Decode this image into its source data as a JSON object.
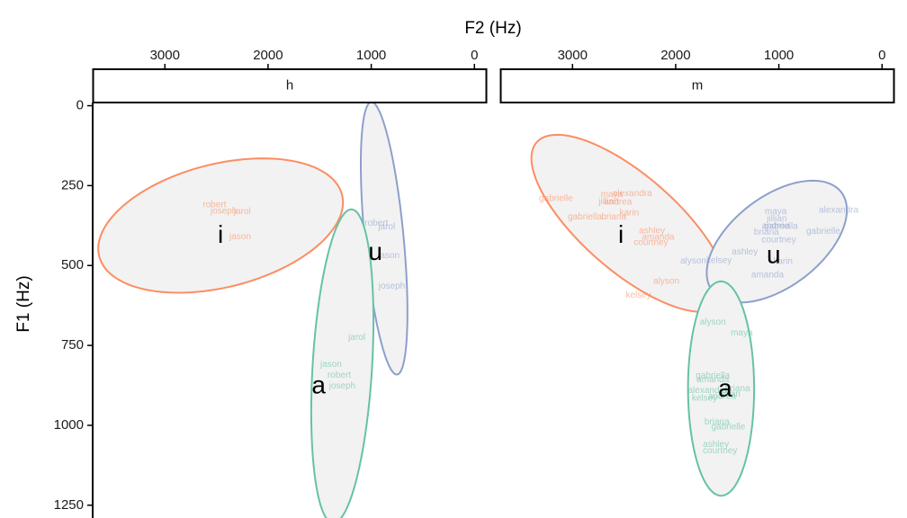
{
  "chart_data": {
    "type": "scatter",
    "xlabel": "F2 (Hz)",
    "ylabel": "F1 (Hz)",
    "x_axis_position": "top",
    "x_reversed": true,
    "y_reversed": true,
    "xlim": [
      3700,
      -120
    ],
    "ylim": [
      -10,
      1290
    ],
    "x_ticks": [
      3000,
      2000,
      1000,
      0
    ],
    "y_ticks": [
      0,
      250,
      500,
      750,
      1000,
      1250
    ],
    "grid": false,
    "colors": {
      "a": "#66c2a5",
      "i": "#fc8d62",
      "u": "#8da0cb"
    },
    "ellipse_fill": "#f2f2f2",
    "panels": [
      {
        "strip": "h",
        "vowels": [
          {
            "vowel": "i",
            "centroid": [
              2460,
              408
            ],
            "ellipse": {
              "cx": 2460,
              "cy": 375,
              "points": [
                [
                  2960,
                  256
                ],
                [
                  2010,
                  530
                ],
                [
                  2940,
                  189
                ],
                [
                  1980,
                  515
                ],
                [
                  2050,
                  160
                ],
                [
                  2370,
                  510
                ]
              ]
            }
          },
          {
            "vowel": "u",
            "centroid": [
              960,
              462
            ],
            "ellipse": {
              "cx": 875,
              "cy": 415,
              "points": [
                [
                  860,
                  55
                ],
                [
                  760,
                  825
                ],
                [
                  1000,
                  465
                ],
                [
                  660,
                  450
                ]
              ]
            }
          },
          {
            "vowel": "a",
            "centroid": [
              1510,
              880
            ],
            "ellipse": {
              "cx": 1280,
              "cy": 815,
              "points": [
                [
                  1000,
                  545
                ],
                [
                  1580,
                  1075
                ],
                [
                  1560,
                  755
                ],
                [
                  1000,
                  830
                ]
              ]
            }
          }
        ],
        "points": [
          {
            "vowel": "i",
            "speaker": "robert",
            "f2": 2520,
            "f1": 310
          },
          {
            "vowel": "i",
            "speaker": "joseph",
            "f2": 2430,
            "f1": 330
          },
          {
            "vowel": "i",
            "speaker": "jarol",
            "f2": 2250,
            "f1": 332
          },
          {
            "vowel": "i",
            "speaker": "jason",
            "f2": 2270,
            "f1": 410
          },
          {
            "vowel": "u",
            "speaker": "robert",
            "f2": 950,
            "f1": 368
          },
          {
            "vowel": "u",
            "speaker": "jarol",
            "f2": 850,
            "f1": 380
          },
          {
            "vowel": "u",
            "speaker": "jason",
            "f2": 830,
            "f1": 470
          },
          {
            "vowel": "u",
            "speaker": "joseph",
            "f2": 800,
            "f1": 565
          },
          {
            "vowel": "a",
            "speaker": "jarol",
            "f2": 1140,
            "f1": 725
          },
          {
            "vowel": "a",
            "speaker": "jason",
            "f2": 1390,
            "f1": 810
          },
          {
            "vowel": "a",
            "speaker": "robert",
            "f2": 1310,
            "f1": 843
          },
          {
            "vowel": "a",
            "speaker": "joseph",
            "f2": 1280,
            "f1": 877
          }
        ]
      },
      {
        "strip": "m",
        "vowels": [
          {
            "vowel": "i",
            "centroid": [
              2530,
              408
            ],
            "ellipse": {
              "cx": 2450,
              "cy": 368,
              "points": [
                [
                  3280,
                  105
                ],
                [
                  1610,
                  640
                ],
                [
                  3330,
                  260
                ],
                [
                  1590,
                  480
                ],
                [
                  2100,
                  330
                ],
                [
                  2950,
                  440
                ]
              ]
            }
          },
          {
            "vowel": "u",
            "centroid": [
              1050,
              472
            ],
            "ellipse": {
              "cx": 1020,
              "cy": 425,
              "points": [
                [
                  340,
                  305
                ],
                [
                  1690,
                  540
                ],
                [
                  700,
                  230
                ],
                [
                  1400,
                  610
                ],
                [
                  1110,
                  280
                ],
                [
                  920,
                  575
                ]
              ]
            }
          },
          {
            "vowel": "a",
            "centroid": [
              1520,
              890
            ],
            "ellipse": {
              "cx": 1560,
              "cy": 885,
              "points": [
                [
                  1520,
                  555
                ],
                [
                  1600,
                  1220
                ],
                [
                  1240,
                  870
                ],
                [
                  1880,
                  870
                ]
              ]
            }
          }
        ],
        "points": [
          {
            "vowel": "i",
            "speaker": "gabrielle",
            "f2": 3160,
            "f1": 290
          },
          {
            "vowel": "i",
            "speaker": "alexandra",
            "f2": 2420,
            "f1": 275
          },
          {
            "vowel": "i",
            "speaker": "maya",
            "f2": 2620,
            "f1": 278
          },
          {
            "vowel": "i",
            "speaker": "jillian",
            "f2": 2650,
            "f1": 300
          },
          {
            "vowel": "i",
            "speaker": "andrea",
            "f2": 2560,
            "f1": 302
          },
          {
            "vowel": "i",
            "speaker": "karin",
            "f2": 2450,
            "f1": 336
          },
          {
            "vowel": "i",
            "speaker": "gabriella",
            "f2": 2880,
            "f1": 348
          },
          {
            "vowel": "i",
            "speaker": "briana",
            "f2": 2600,
            "f1": 348
          },
          {
            "vowel": "i",
            "speaker": "ashley",
            "f2": 2230,
            "f1": 392
          },
          {
            "vowel": "i",
            "speaker": "amanda",
            "f2": 2170,
            "f1": 412
          },
          {
            "vowel": "i",
            "speaker": "courtney",
            "f2": 2240,
            "f1": 428
          },
          {
            "vowel": "i",
            "speaker": "alyson",
            "f2": 2090,
            "f1": 550
          },
          {
            "vowel": "i",
            "speaker": "kelsey",
            "f2": 2360,
            "f1": 593
          },
          {
            "vowel": "u",
            "speaker": "maya",
            "f2": 1030,
            "f1": 332
          },
          {
            "vowel": "u",
            "speaker": "alexandra",
            "f2": 420,
            "f1": 327
          },
          {
            "vowel": "u",
            "speaker": "jillian",
            "f2": 1020,
            "f1": 354
          },
          {
            "vowel": "u",
            "speaker": "andrea",
            "f2": 1030,
            "f1": 376
          },
          {
            "vowel": "u",
            "speaker": "gabriella",
            "f2": 980,
            "f1": 378
          },
          {
            "vowel": "u",
            "speaker": "gabrielle",
            "f2": 570,
            "f1": 393
          },
          {
            "vowel": "u",
            "speaker": "briana",
            "f2": 1120,
            "f1": 396
          },
          {
            "vowel": "u",
            "speaker": "courtney",
            "f2": 1000,
            "f1": 420
          },
          {
            "vowel": "u",
            "speaker": "ashley",
            "f2": 1330,
            "f1": 458
          },
          {
            "vowel": "u",
            "speaker": "kelsey",
            "f2": 1580,
            "f1": 485
          },
          {
            "vowel": "u",
            "speaker": "alyson",
            "f2": 1830,
            "f1": 486
          },
          {
            "vowel": "u",
            "speaker": "karin",
            "f2": 960,
            "f1": 487
          },
          {
            "vowel": "u",
            "speaker": "amanda",
            "f2": 1110,
            "f1": 530
          },
          {
            "vowel": "a",
            "speaker": "alyson",
            "f2": 1640,
            "f1": 678
          },
          {
            "vowel": "a",
            "speaker": "maya",
            "f2": 1360,
            "f1": 712
          },
          {
            "vowel": "a",
            "speaker": "gabriella",
            "f2": 1640,
            "f1": 845
          },
          {
            "vowel": "a",
            "speaker": "amanda",
            "f2": 1640,
            "f1": 858
          },
          {
            "vowel": "a",
            "speaker": "briana",
            "f2": 1400,
            "f1": 886
          },
          {
            "vowel": "a",
            "speaker": "alexandra",
            "f2": 1690,
            "f1": 892
          },
          {
            "vowel": "a",
            "speaker": "jillian",
            "f2": 1470,
            "f1": 902
          },
          {
            "vowel": "a",
            "speaker": "andrea",
            "f2": 1550,
            "f1": 910
          },
          {
            "vowel": "a",
            "speaker": "kelsey",
            "f2": 1720,
            "f1": 916
          },
          {
            "vowel": "a",
            "speaker": "briana",
            "f2": 1600,
            "f1": 990
          },
          {
            "vowel": "a",
            "speaker": "gabrielle",
            "f2": 1490,
            "f1": 1005
          },
          {
            "vowel": "a",
            "speaker": "ashley",
            "f2": 1610,
            "f1": 1060
          },
          {
            "vowel": "a",
            "speaker": "courtney",
            "f2": 1570,
            "f1": 1080
          }
        ]
      }
    ]
  }
}
